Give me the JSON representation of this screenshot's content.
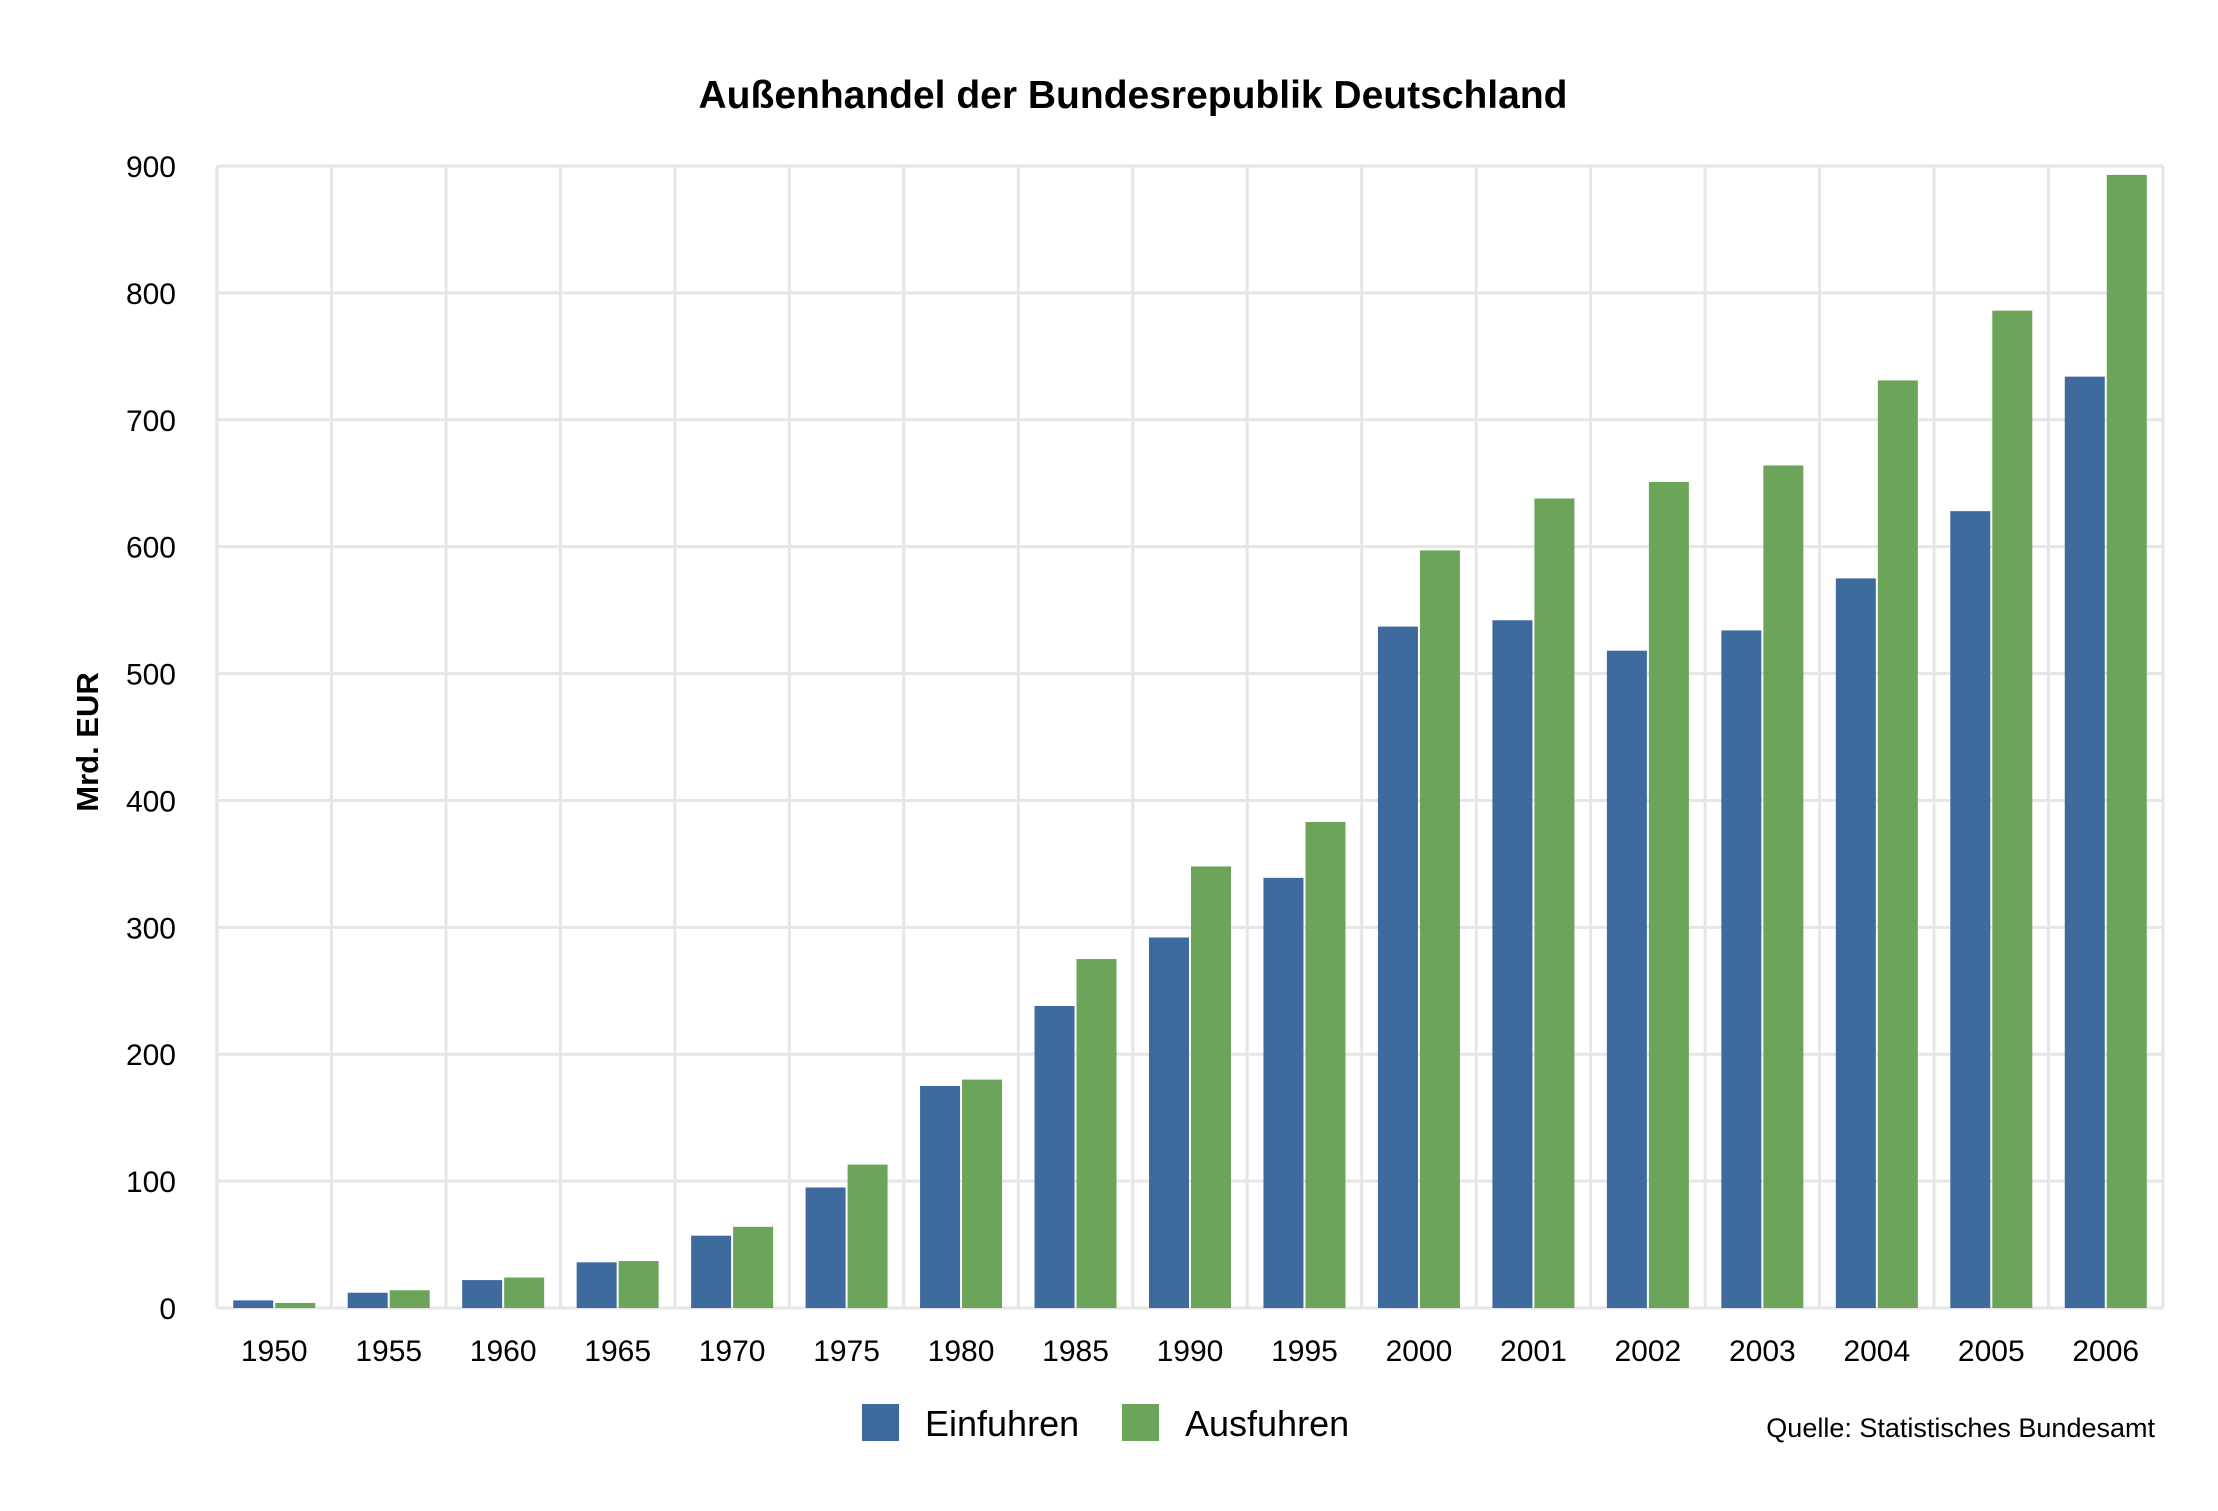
{
  "chart_data": {
    "type": "bar",
    "title": "Außenhandel der Bundesrepublik Deutschland",
    "xlabel": "",
    "ylabel": "Mrd. EUR",
    "ylim": [
      0,
      900
    ],
    "yticks": [
      "0",
      "100",
      "200",
      "300",
      "400",
      "500",
      "600",
      "700",
      "800",
      "900"
    ],
    "grid": true,
    "legend_position": "bottom-center",
    "categories": [
      "1950",
      "1955",
      "1960",
      "1965",
      "1970",
      "1975",
      "1980",
      "1985",
      "1990",
      "1995",
      "2000",
      "2001",
      "2002",
      "2003",
      "2004",
      "2005",
      "2006"
    ],
    "series": [
      {
        "name": "Einfuhren",
        "color": "#3e6a9e",
        "values": [
          6,
          12,
          22,
          36,
          57,
          95,
          175,
          238,
          292,
          339,
          537,
          542,
          518,
          534,
          575,
          628,
          734
        ]
      },
      {
        "name": "Ausfuhren",
        "color": "#6ca45a",
        "values": [
          4,
          14,
          24,
          37,
          64,
          113,
          180,
          275,
          348,
          383,
          597,
          638,
          651,
          664,
          731,
          786,
          893
        ]
      }
    ],
    "source": "Quelle: Statistisches Bundesamt"
  }
}
